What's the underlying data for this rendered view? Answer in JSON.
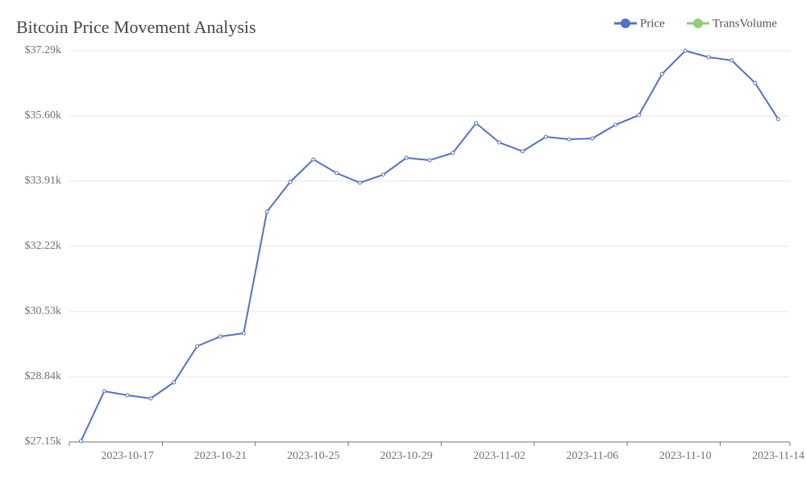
{
  "chart_data": {
    "type": "line",
    "title": "Bitcoin Price Movement Analysis",
    "categories": [
      null,
      null,
      "2023-10-17",
      null,
      null,
      null,
      "2023-10-21",
      null,
      null,
      null,
      "2023-10-25",
      null,
      null,
      null,
      "2023-10-29",
      null,
      null,
      null,
      "2023-11-02",
      null,
      null,
      null,
      "2023-11-06",
      null,
      null,
      null,
      "2023-11-10",
      null,
      null,
      null,
      "2023-11-14"
    ],
    "series": [
      {
        "name": "Price",
        "color": "#5470c6",
        "values": [
          27170,
          28464,
          28360,
          28277,
          28694,
          29633,
          29883,
          29966,
          33116,
          33888,
          34472,
          34118,
          33868,
          34076,
          34514,
          34452,
          34640,
          35412,
          34911,
          34682,
          35057,
          34994,
          35015,
          35370,
          35620,
          36685,
          37290,
          37123,
          37039,
          36455,
          35516
        ]
      },
      {
        "name": "TransVolume",
        "color": "#91cc75",
        "values": [
          null,
          null,
          null,
          null,
          null,
          null,
          null,
          null,
          null,
          null,
          null,
          null,
          null,
          null,
          null,
          null,
          null,
          null,
          null,
          null,
          null,
          null,
          null,
          null,
          null,
          null,
          null,
          null,
          null,
          null,
          null
        ]
      }
    ],
    "ylim": [
      27150,
      37290
    ],
    "yticks": [
      {
        "value": 27150,
        "label": "$27.15k"
      },
      {
        "value": 28840,
        "label": "$28.84k"
      },
      {
        "value": 30530,
        "label": "$30.53k"
      },
      {
        "value": 32220,
        "label": "$32.22k"
      },
      {
        "value": 33910,
        "label": "$33.91k"
      },
      {
        "value": 35600,
        "label": "$35.60k"
      },
      {
        "value": 37290,
        "label": "$37.29k"
      }
    ],
    "grid": true
  }
}
